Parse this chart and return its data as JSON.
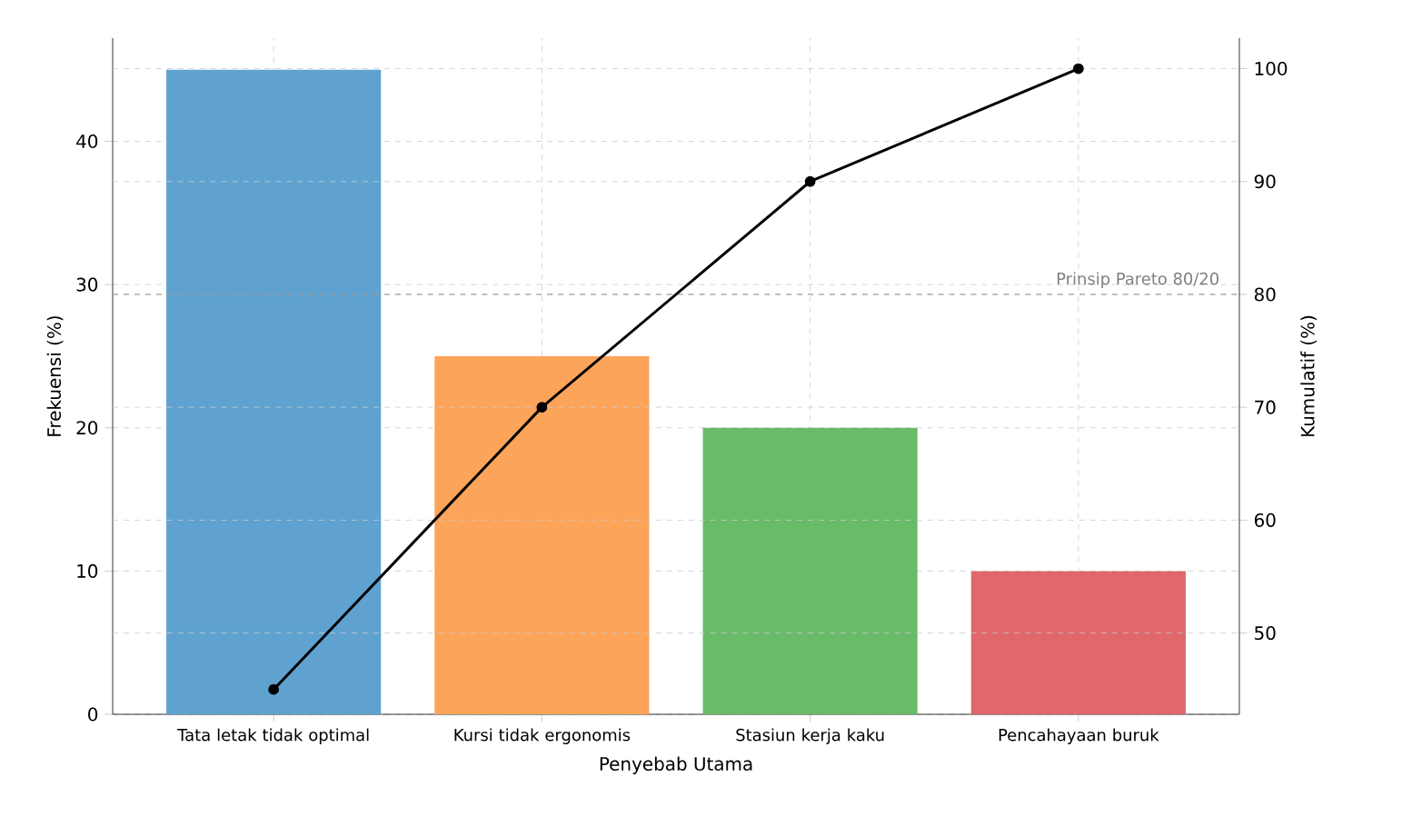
{
  "chart_data": {
    "type": "bar",
    "xlabel": "Penyebab Utama",
    "ylabel": "Frekuensi (%)",
    "y2label": "Kumulatif (%)",
    "categories": [
      "Tata letak tidak optimal",
      "Kursi tidak ergonomis",
      "Stasiun kerja kaku",
      "Pencahayaan buruk"
    ],
    "series": [
      {
        "values": [
          45,
          25,
          20,
          10
        ],
        "colors": [
          "#5fa2d0",
          "#fca45a",
          "#69bb69",
          "#e0676a"
        ]
      },
      {
        "type": "line",
        "axis": "y2",
        "values": [
          45,
          70,
          90,
          100
        ],
        "color": "#000000",
        "marker": "circle",
        "line_style": "solid"
      }
    ],
    "ylim": [
      0,
      47.2
    ],
    "yticks": [
      0,
      10,
      20,
      30,
      40
    ],
    "y2lim": [
      42.8,
      102.7
    ],
    "y2ticks": [
      50,
      60,
      70,
      80,
      90,
      100
    ],
    "ref_lines": [
      {
        "axis": "y2",
        "value": 80,
        "label": "Prinsip Pareto 80/20",
        "color": "#808080",
        "line_style": "dashed"
      }
    ],
    "grid": true
  }
}
